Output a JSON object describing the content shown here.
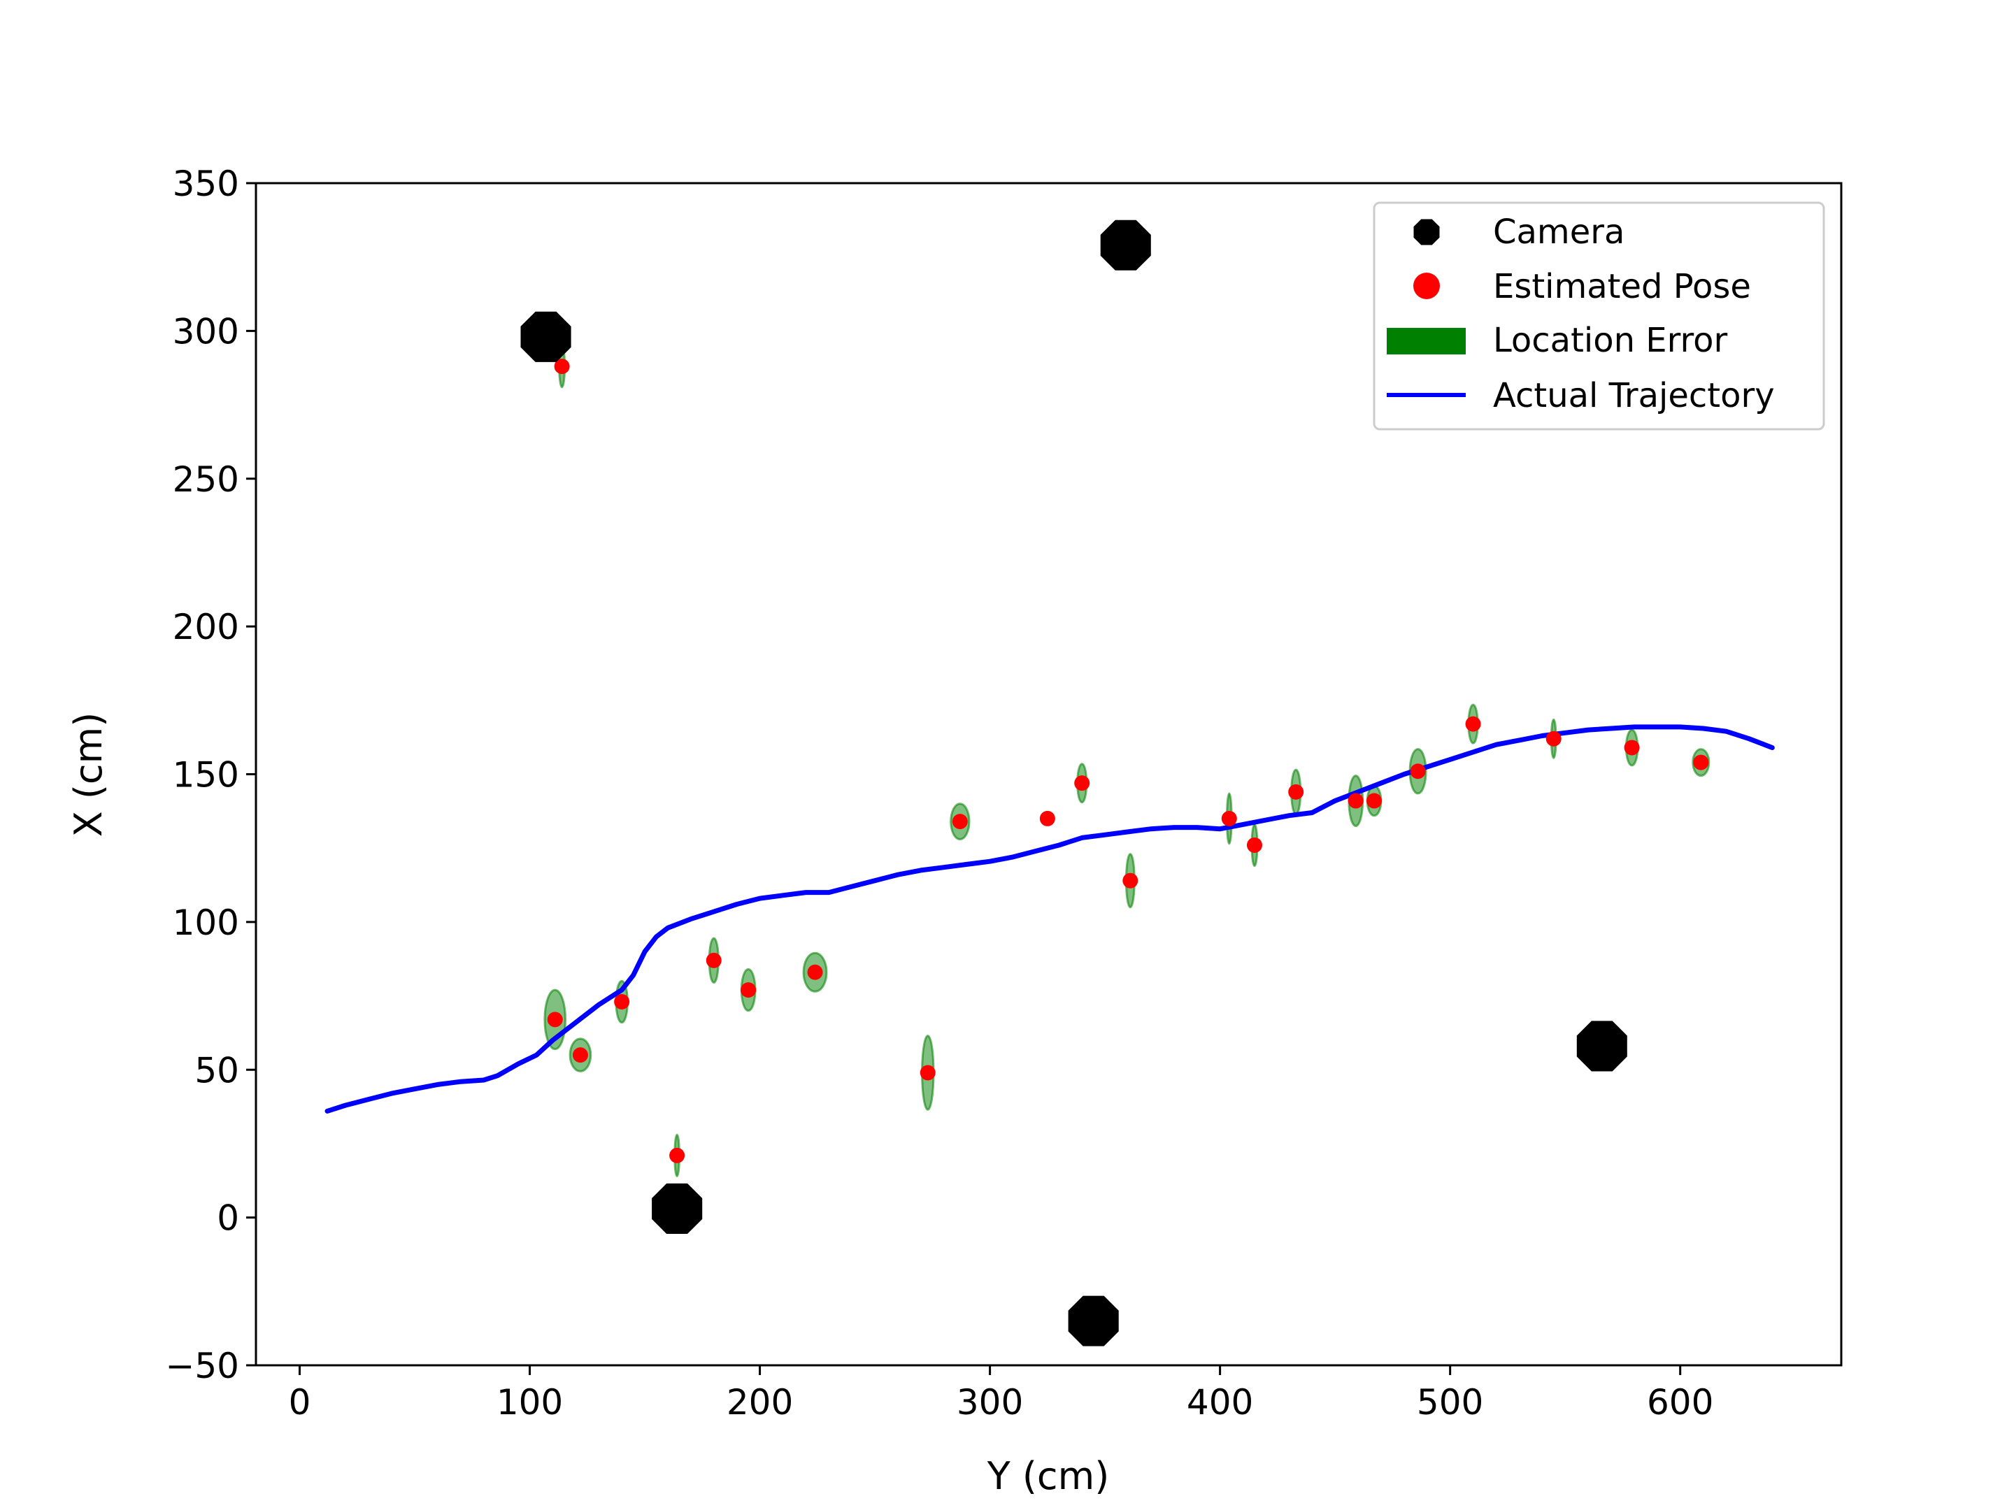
{
  "chart_data": {
    "type": "scatter",
    "title": "",
    "xlabel": "Y (cm)",
    "ylabel": "X (cm)",
    "xlim": [
      -19,
      670
    ],
    "ylim": [
      -50,
      350
    ],
    "xticks": [
      0,
      100,
      200,
      300,
      400,
      500,
      600
    ],
    "yticks": [
      -50,
      0,
      50,
      100,
      150,
      200,
      250,
      300,
      350
    ],
    "xtick_labels": [
      "0",
      "100",
      "200",
      "300",
      "400",
      "500",
      "600"
    ],
    "ytick_labels": [
      "−50",
      "0",
      "50",
      "100",
      "150",
      "200",
      "250",
      "300",
      "350"
    ],
    "grid": false,
    "legend": {
      "position": "top-right",
      "entries": [
        "Camera",
        "Estimated Pose",
        "Location Error",
        "Actual Trajectory"
      ]
    },
    "colors": {
      "camera": "#000000",
      "estimated_pose": "#ff0000",
      "location_error": "#008000",
      "trajectory": "#0000ff"
    },
    "series": [
      {
        "name": "Camera",
        "marker": "octagon",
        "points": [
          [
            107,
            298
          ],
          [
            359,
            329
          ],
          [
            164,
            3
          ],
          [
            345,
            -35
          ],
          [
            566,
            58
          ]
        ]
      },
      {
        "name": "Estimated Pose",
        "marker": "circle",
        "points": [
          [
            114,
            288
          ],
          [
            111,
            67
          ],
          [
            122,
            55
          ],
          [
            140,
            73
          ],
          [
            180,
            87
          ],
          [
            195,
            77
          ],
          [
            224,
            83
          ],
          [
            164,
            21
          ],
          [
            273,
            49
          ],
          [
            287,
            134
          ],
          [
            325,
            135
          ],
          [
            340,
            147
          ],
          [
            361,
            114
          ],
          [
            404,
            135
          ],
          [
            415,
            126
          ],
          [
            433,
            144
          ],
          [
            459,
            141
          ],
          [
            467,
            141
          ],
          [
            486,
            151
          ],
          [
            510,
            167
          ],
          [
            545,
            162
          ],
          [
            579,
            159
          ],
          [
            609,
            154
          ]
        ]
      },
      {
        "name": "Location Error",
        "marker": "ellipse",
        "ellipses": [
          {
            "cx": 114,
            "cy": 288,
            "rx": 1.2,
            "ry": 7
          },
          {
            "cx": 111,
            "cy": 67,
            "rx": 4.5,
            "ry": 10
          },
          {
            "cx": 122,
            "cy": 55,
            "rx": 4.5,
            "ry": 5.5
          },
          {
            "cx": 140,
            "cy": 73,
            "rx": 2.5,
            "ry": 7
          },
          {
            "cx": 180,
            "cy": 87,
            "rx": 2,
            "ry": 7.5
          },
          {
            "cx": 195,
            "cy": 77,
            "rx": 3,
            "ry": 7
          },
          {
            "cx": 224,
            "cy": 83,
            "rx": 5,
            "ry": 6.5
          },
          {
            "cx": 164,
            "cy": 21,
            "rx": 1,
            "ry": 7
          },
          {
            "cx": 273,
            "cy": 49,
            "rx": 2.5,
            "ry": 12.5
          },
          {
            "cx": 287,
            "cy": 134,
            "rx": 4,
            "ry": 6
          },
          {
            "cx": 340,
            "cy": 147,
            "rx": 2,
            "ry": 6.5
          },
          {
            "cx": 361,
            "cy": 114,
            "rx": 1.8,
            "ry": 9
          },
          {
            "cx": 404,
            "cy": 135,
            "rx": 1,
            "ry": 8.5
          },
          {
            "cx": 415,
            "cy": 126,
            "rx": 1.2,
            "ry": 7
          },
          {
            "cx": 433,
            "cy": 144,
            "rx": 2,
            "ry": 7.5
          },
          {
            "cx": 459,
            "cy": 141,
            "rx": 3,
            "ry": 8.5
          },
          {
            "cx": 467,
            "cy": 141,
            "rx": 3,
            "ry": 5
          },
          {
            "cx": 486,
            "cy": 151,
            "rx": 3.5,
            "ry": 7.5
          },
          {
            "cx": 510,
            "cy": 167,
            "rx": 2,
            "ry": 6.5
          },
          {
            "cx": 545,
            "cy": 162,
            "rx": 1,
            "ry": 6.5
          },
          {
            "cx": 579,
            "cy": 159,
            "rx": 2.5,
            "ry": 6
          },
          {
            "cx": 609,
            "cy": 154,
            "rx": 3.5,
            "ry": 4.5
          }
        ]
      },
      {
        "name": "Actual Trajectory",
        "marker": "line",
        "points": [
          [
            12,
            36
          ],
          [
            20,
            38
          ],
          [
            30,
            40
          ],
          [
            40,
            42
          ],
          [
            50,
            43.5
          ],
          [
            60,
            45
          ],
          [
            70,
            46
          ],
          [
            80,
            46.5
          ],
          [
            86,
            48
          ],
          [
            95,
            52
          ],
          [
            103,
            55
          ],
          [
            110,
            60
          ],
          [
            120,
            66
          ],
          [
            130,
            72
          ],
          [
            140,
            77
          ],
          [
            145,
            82
          ],
          [
            150,
            90
          ],
          [
            155,
            95
          ],
          [
            160,
            98
          ],
          [
            170,
            101
          ],
          [
            180,
            103.5
          ],
          [
            190,
            106
          ],
          [
            200,
            108
          ],
          [
            210,
            109
          ],
          [
            220,
            110
          ],
          [
            230,
            110
          ],
          [
            240,
            112
          ],
          [
            250,
            114
          ],
          [
            260,
            116
          ],
          [
            270,
            117.5
          ],
          [
            280,
            118.5
          ],
          [
            290,
            119.5
          ],
          [
            300,
            120.5
          ],
          [
            310,
            122
          ],
          [
            320,
            124
          ],
          [
            330,
            126
          ],
          [
            340,
            128.5
          ],
          [
            350,
            129.5
          ],
          [
            360,
            130.5
          ],
          [
            370,
            131.5
          ],
          [
            380,
            132
          ],
          [
            390,
            132
          ],
          [
            400,
            131.5
          ],
          [
            410,
            133
          ],
          [
            420,
            134.5
          ],
          [
            430,
            136
          ],
          [
            440,
            137
          ],
          [
            450,
            141
          ],
          [
            460,
            144
          ],
          [
            470,
            147
          ],
          [
            480,
            150
          ],
          [
            490,
            152.5
          ],
          [
            500,
            155
          ],
          [
            510,
            157.5
          ],
          [
            520,
            160
          ],
          [
            530,
            161.5
          ],
          [
            540,
            163
          ],
          [
            550,
            164
          ],
          [
            560,
            165
          ],
          [
            570,
            165.5
          ],
          [
            580,
            166
          ],
          [
            590,
            166
          ],
          [
            600,
            166
          ],
          [
            610,
            165.5
          ],
          [
            620,
            164.5
          ],
          [
            630,
            162
          ],
          [
            640,
            159
          ]
        ]
      }
    ]
  }
}
